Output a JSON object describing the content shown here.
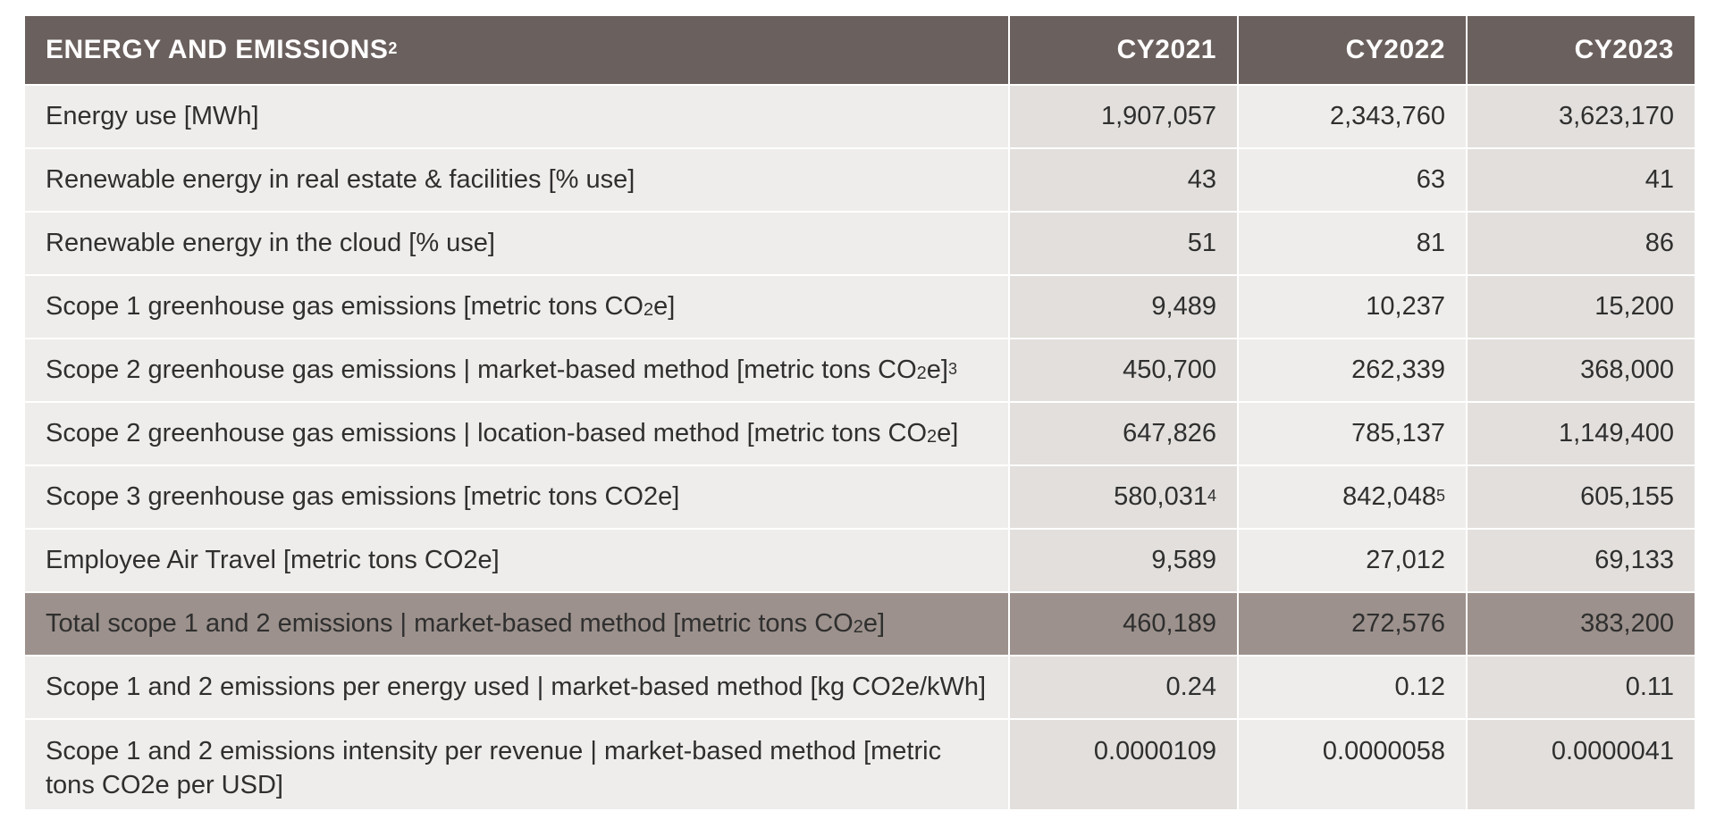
{
  "header": {
    "title": "ENERGY AND EMISSIONS",
    "title_note": "2",
    "years": [
      "CY2021",
      "CY2022",
      "CY2023"
    ]
  },
  "rows": [
    {
      "label": "Energy use [MWh]",
      "values": [
        "1,907,057",
        "2,343,760",
        "3,623,170"
      ]
    },
    {
      "label": "Renewable energy in real estate & facilities [% use]",
      "values": [
        "43",
        "63",
        "41"
      ]
    },
    {
      "label": "Renewable energy in the cloud [% use]",
      "values": [
        "51",
        "81",
        "86"
      ]
    },
    {
      "label_pre": "Scope 1 greenhouse gas emissions [metric tons CO",
      "label_sub": "2",
      "label_post": "e]",
      "values": [
        "9,489",
        "10,237",
        "15,200"
      ]
    },
    {
      "label_pre": "Scope 2 greenhouse gas emissions | market-based method [metric tons CO",
      "label_sub": "2",
      "label_post": "e]",
      "label_note": "3",
      "values": [
        "450,700",
        "262,339",
        "368,000"
      ]
    },
    {
      "label_pre": "Scope 2 greenhouse gas emissions | location-based method [metric tons CO",
      "label_sub": "2",
      "label_post": "e]",
      "values": [
        "647,826",
        "785,137",
        "1,149,400"
      ]
    },
    {
      "label": "Scope 3 greenhouse gas emissions [metric tons CO2e]",
      "values": [
        "580,031",
        "842,048",
        "605,155"
      ],
      "value_notes": [
        "4",
        "5",
        ""
      ]
    },
    {
      "label": "Employee Air Travel [metric tons CO2e]",
      "values": [
        "9,589",
        "27,012",
        "69,133"
      ]
    },
    {
      "label_pre": "Total scope 1 and 2 emissions | market-based method [metric tons CO",
      "label_sub": "2",
      "label_post": "e]",
      "values": [
        "460,189",
        "272,576",
        "383,200"
      ]
    },
    {
      "label": "Scope 1 and 2 emissions per energy used | market-based method [kg CO2e/kWh]",
      "values": [
        "0.24",
        "0.12",
        "0.11"
      ]
    },
    {
      "label": "Scope 1 and 2 emissions intensity per revenue | market-based method [metric tons CO2e per USD]",
      "values": [
        "0.0000109",
        "0.0000058",
        "0.0000041"
      ]
    }
  ]
}
